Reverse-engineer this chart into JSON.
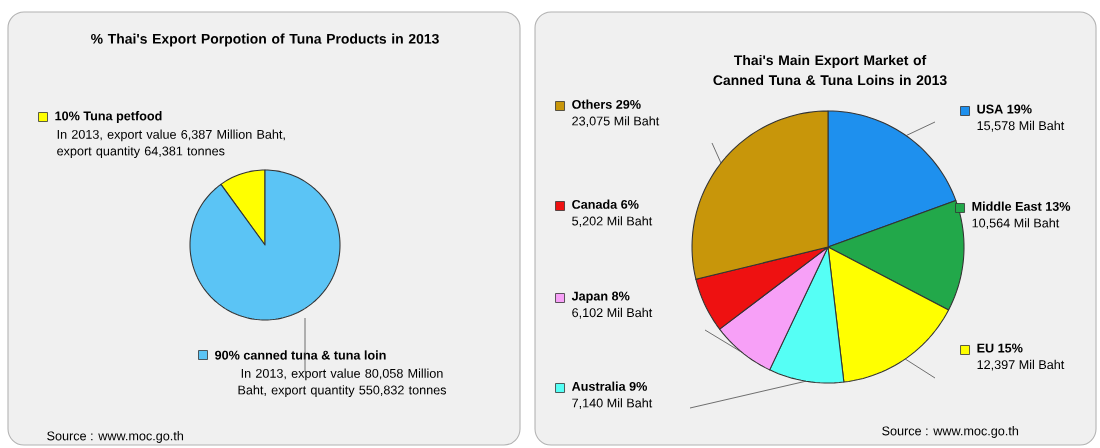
{
  "chart_data": [
    {
      "type": "pie",
      "title": "% Thai's Export Porpotion of Tuna Products in 2013",
      "categories": [
        "10% Tuna petfood",
        "90% canned tuna & tuna loin"
      ],
      "values": [
        10,
        90
      ],
      "colors": [
        "#ffff00",
        "#5bc4f5"
      ],
      "legend": "left",
      "annotations": [
        "In 2013, export value 6,387 Million Baht, export quantity 64,381 tonnes",
        "In 2013, export value 80,058 Million Baht, export quantity 550,832 tonnes",
        "Source : www.moc.go.th"
      ]
    },
    {
      "type": "pie",
      "title": "Thai's Main Export Market of Canned Tuna & Tuna Loins in 2013",
      "categories": [
        "USA 19%",
        "Middle East 13%",
        "EU 15%",
        "Australia 9%",
        "Japan 8%",
        "Canada 6%",
        "Others 29%"
      ],
      "legend": "left",
      "values": [
        15578,
        10564,
        12397,
        7140,
        6102,
        5202,
        23075
      ],
      "value_labels": [
        "15,578 Mil Baht",
        "10,564 Mil Baht",
        "12,397 Mil Baht",
        "7,140 Mil Baht",
        "6,102 Mil Baht",
        "5,202 Mil Baht",
        "23,075 Mil Baht"
      ],
      "colors": [
        "#1e90ee",
        "#22a84a",
        "#ffff00",
        "#55fff5",
        "#f7a0f7",
        "#ee1111",
        "#c8960a"
      ],
      "annotations": [
        "Source : www.moc.go.th"
      ]
    }
  ]
}
